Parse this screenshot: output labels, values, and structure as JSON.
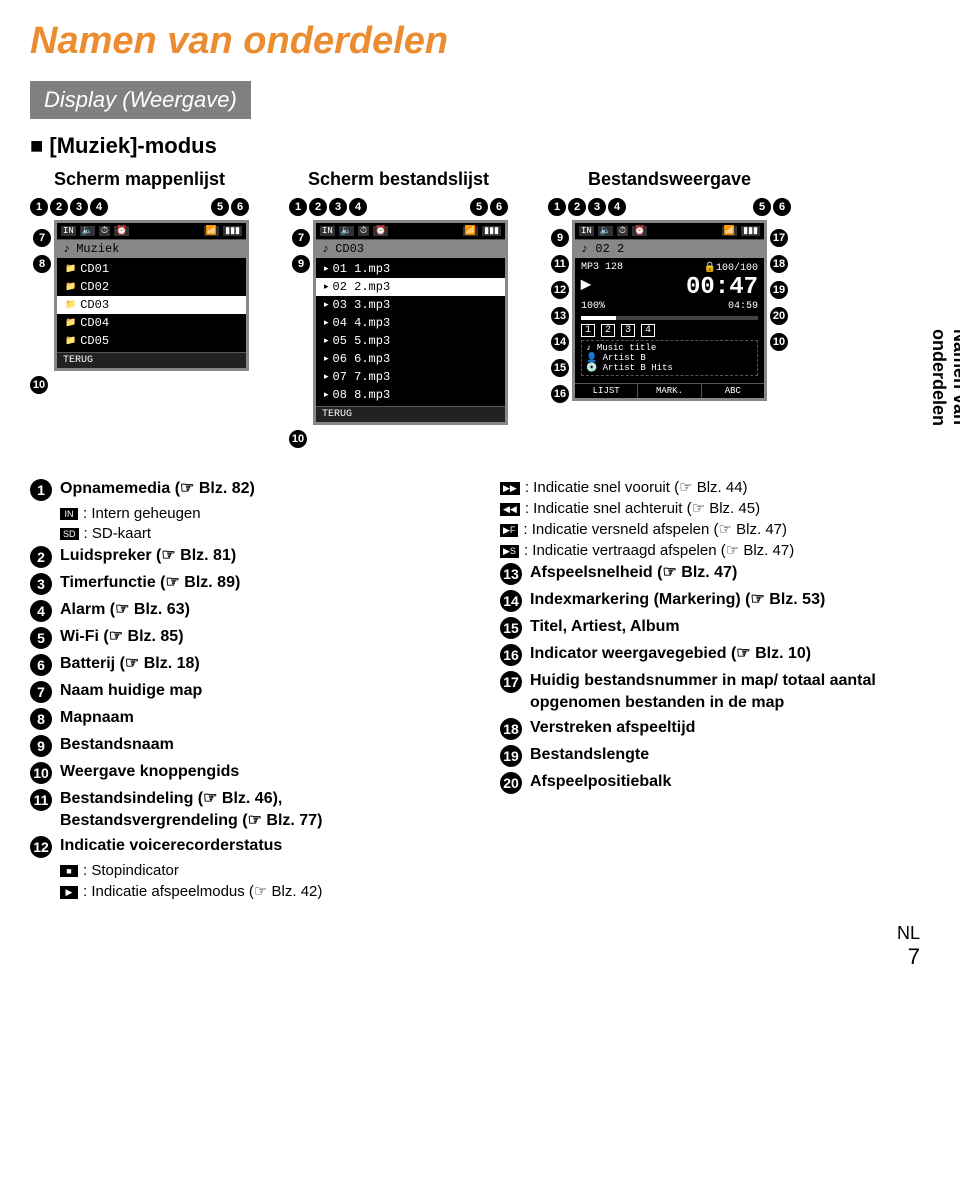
{
  "page": {
    "title": "Namen van onderdelen",
    "subtitle": "Display (Weergave)",
    "mode_label": "[Muziek]-modus",
    "side_label": "Namen van onderdelen",
    "lang": "NL",
    "page_number": "7"
  },
  "screens": {
    "a": {
      "label": "Scherm mappenlijst",
      "top_left": [
        "1",
        "2",
        "3",
        "4"
      ],
      "top_right": [
        "5",
        "6"
      ],
      "side_left": [
        "7",
        "8"
      ],
      "bottom_left": [
        "10"
      ],
      "header": "Muziek",
      "rows": [
        "CD01",
        "CD02",
        "CD03",
        "CD04",
        "CD05"
      ],
      "selected_index": 2,
      "footer": "TERUG"
    },
    "b": {
      "label": "Scherm bestandslijst",
      "top_left": [
        "1",
        "2",
        "3",
        "4"
      ],
      "top_right": [
        "5",
        "6"
      ],
      "side_left": [
        "7",
        "9"
      ],
      "bottom_left": [
        "10"
      ],
      "header": "CD03",
      "rows": [
        "01 1.mp3",
        "02 2.mp3",
        "03 3.mp3",
        "04 4.mp3",
        "05 5.mp3",
        "06 6.mp3",
        "07 7.mp3",
        "08 8.mp3"
      ],
      "selected_index": 1,
      "footer": "TERUG"
    },
    "c": {
      "label": "Bestandsweergave",
      "top_left": [
        "1",
        "2",
        "3",
        "4"
      ],
      "top_right": [
        "5",
        "6"
      ],
      "side_left": [
        "9",
        "11",
        "12",
        "13",
        "14",
        "15",
        "16"
      ],
      "side_right": [
        "17",
        "18",
        "19",
        "20",
        "10"
      ],
      "title": "02 2",
      "fmt": "MP3 128",
      "counter": "100/100",
      "big_time": "00:47",
      "pct": "100%",
      "total_time": "04:59",
      "indices": [
        "1",
        "2",
        "3",
        "4"
      ],
      "meta1": "Music title",
      "meta2": "Artist B",
      "meta3": "Artist B Hits",
      "btns": [
        "LIJST",
        "MARK.",
        "ABC"
      ]
    }
  },
  "legend": {
    "left": [
      {
        "n": "1",
        "text": "Opnamemedia (☞ Blz. 82)",
        "subs": [
          {
            "icon": "IN",
            "text": ": Intern geheugen"
          },
          {
            "icon": "SD",
            "text": ": SD-kaart"
          }
        ]
      },
      {
        "n": "2",
        "text": "Luidspreker (☞ Blz. 81)"
      },
      {
        "n": "3",
        "text": "Timerfunctie (☞ Blz. 89)"
      },
      {
        "n": "4",
        "text": "Alarm (☞ Blz. 63)"
      },
      {
        "n": "5",
        "text": "Wi-Fi (☞ Blz. 85)"
      },
      {
        "n": "6",
        "text": "Batterij (☞ Blz. 18)"
      },
      {
        "n": "7",
        "text": "Naam huidige map"
      },
      {
        "n": "8",
        "text": "Mapnaam"
      },
      {
        "n": "9",
        "text": "Bestandsnaam"
      },
      {
        "n": "10",
        "text": "Weergave knoppengids"
      },
      {
        "n": "11",
        "text": "Bestandsindeling (☞ Blz. 46), Bestandsvergrendeling (☞ Blz. 77)"
      },
      {
        "n": "12",
        "text": "Indicatie voicerecorderstatus",
        "subs": [
          {
            "icon": "■",
            "text": ": Stopindicator"
          },
          {
            "icon": "▶",
            "text": ": Indicatie afspeelmodus (☞ Blz. 42)"
          }
        ]
      }
    ],
    "right_subs": [
      {
        "icon": "▶▶",
        "text": ": Indicatie snel vooruit (☞ Blz. 44)"
      },
      {
        "icon": "◀◀",
        "text": ": Indicatie snel achteruit (☞ Blz. 45)"
      },
      {
        "icon": "▶F",
        "text": ": Indicatie versneld afspelen (☞ Blz. 47)"
      },
      {
        "icon": "▶S",
        "text": ": Indicatie vertraagd afspelen (☞ Blz. 47)"
      }
    ],
    "right": [
      {
        "n": "13",
        "text": "Afspeelsnelheid (☞ Blz. 47)"
      },
      {
        "n": "14",
        "text": "Indexmarkering (Markering) (☞ Blz. 53)"
      },
      {
        "n": "15",
        "text": "Titel, Artiest, Album"
      },
      {
        "n": "16",
        "text": "Indicator weergavegebied (☞ Blz. 10)"
      },
      {
        "n": "17",
        "text": "Huidig bestandsnummer in map/ totaal aantal opgenomen bestanden in de map"
      },
      {
        "n": "18",
        "text": "Verstreken afspeeltijd"
      },
      {
        "n": "19",
        "text": "Bestandslengte"
      },
      {
        "n": "20",
        "text": "Afspeelpositiebalk"
      }
    ]
  }
}
